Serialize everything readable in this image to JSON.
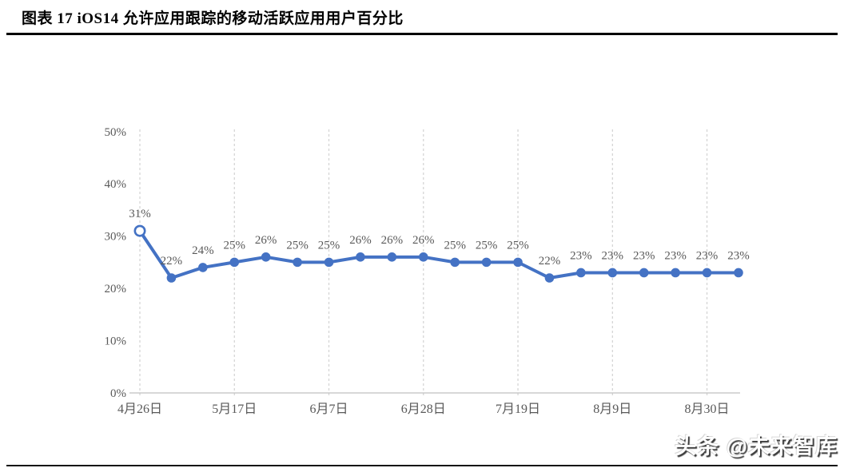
{
  "header": {
    "title": "图表  17 iOS14 允许应用跟踪的移动活跃应用用户百分比"
  },
  "chart_data": {
    "type": "line",
    "title": "图表 17 iOS14 允许应用跟踪的移动活跃应用用户百分比",
    "values": [
      31,
      22,
      24,
      25,
      26,
      25,
      25,
      26,
      26,
      26,
      25,
      25,
      25,
      22,
      23,
      23,
      23,
      23,
      23,
      23
    ],
    "point_labels": [
      "31%",
      "22%",
      "24%",
      "25%",
      "26%",
      "25%",
      "25%",
      "26%",
      "26%",
      "26%",
      "25%",
      "25%",
      "25%",
      "22%",
      "23%",
      "23%",
      "23%",
      "23%",
      "23%",
      "23%"
    ],
    "x_tick_labels": [
      "4月26日",
      "5月17日",
      "6月7日",
      "6月28日",
      "7月19日",
      "8月9日",
      "8月30日"
    ],
    "x_tick_indices": [
      0,
      3,
      6,
      9,
      12,
      15,
      18
    ],
    "y_tick_labels": [
      "0%",
      "10%",
      "20%",
      "30%",
      "40%",
      "50%"
    ],
    "y_tick_values": [
      0,
      10,
      20,
      30,
      40,
      50
    ],
    "ylim": [
      0,
      50
    ],
    "grid": "vertical-dashed",
    "legend": "none",
    "first_point_open_marker": true,
    "colors": {
      "line": "#4472C4",
      "marker": "#4472C4",
      "data_label": "#595959",
      "axis_text": "#595959",
      "gridline": "#d2d2d2",
      "axis_line": "#c0c0c0"
    }
  },
  "watermark": {
    "text": "头条 @未来智库"
  }
}
